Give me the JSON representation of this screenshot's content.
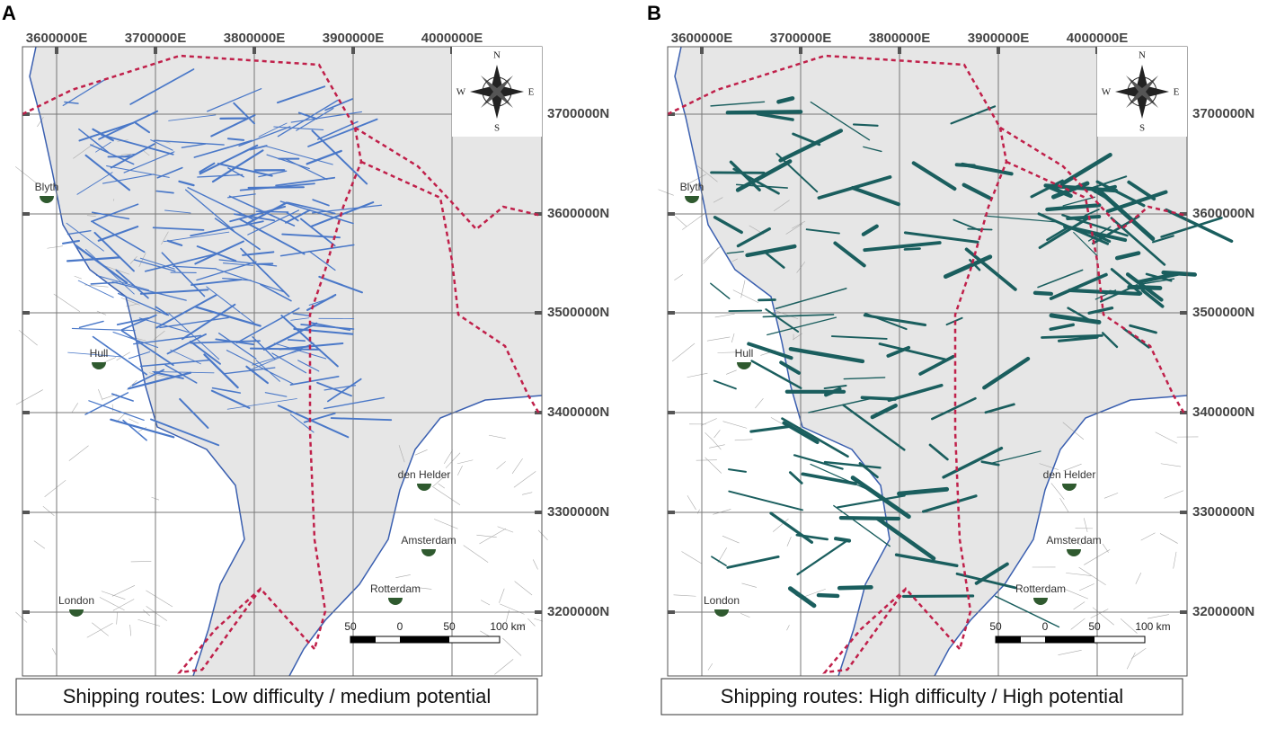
{
  "panels": [
    {
      "label": "A",
      "caption": "Shipping routes: Low difficulty / medium potential",
      "x_labels": [
        "3600000E",
        "3700000E",
        "3800000E",
        "3900000E",
        "4000000E"
      ],
      "y_labels": [
        "3700000N",
        "3600000N",
        "3500000N",
        "3400000N",
        "3300000N",
        "3200000N"
      ],
      "compass": [
        "N",
        "S",
        "E",
        "W"
      ],
      "cities": [
        "Blyth",
        "Hull",
        "London",
        "den Helder",
        "Amsterdam",
        "Rotterdam"
      ],
      "scale_labels": [
        "50",
        "0",
        "50",
        "100 km"
      ]
    },
    {
      "label": "B",
      "caption": "Shipping routes: High difficulty / High potential",
      "x_labels": [
        "3600000E",
        "3700000E",
        "3800000E",
        "3900000E",
        "4000000E"
      ],
      "y_labels": [
        "3700000N",
        "3600000N",
        "3500000N",
        "3400000N",
        "3300000N",
        "3200000N"
      ],
      "compass": [
        "N",
        "S",
        "E",
        "W"
      ],
      "cities": [
        "Blyth",
        "Hull",
        "London",
        "den Helder",
        "Amsterdam",
        "Rotterdam"
      ],
      "scale_labels": [
        "50",
        "0",
        "50",
        "100 km"
      ]
    }
  ]
}
